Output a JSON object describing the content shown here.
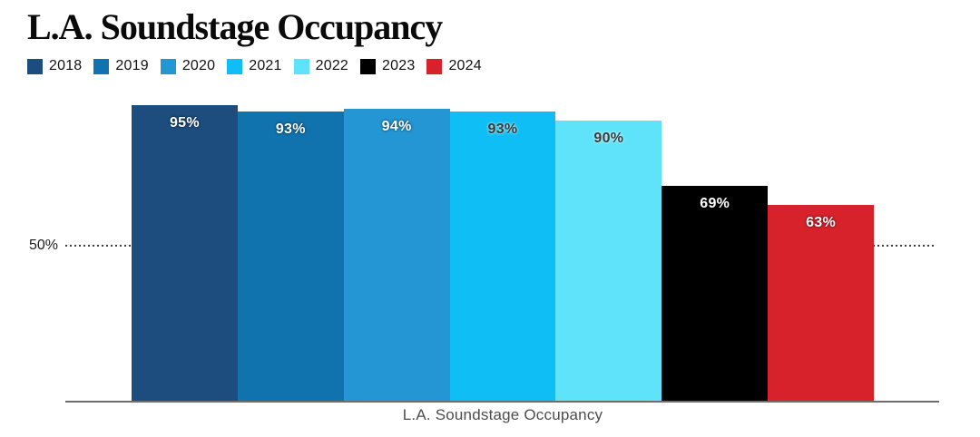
{
  "header": {
    "title": "L.A. Soundstage Occupancy"
  },
  "chart_data": {
    "type": "bar",
    "title": "L.A. Soundstage Occupancy",
    "xlabel": "L.A. Soundstage Occupancy",
    "ylabel": "",
    "categories": [
      "2018",
      "2019",
      "2020",
      "2021",
      "2022",
      "2023",
      "2024"
    ],
    "values": [
      95,
      93,
      94,
      93,
      90,
      69,
      63
    ],
    "value_labels": [
      "95%",
      "93%",
      "94%",
      "93%",
      "90%",
      "69%",
      "63%"
    ],
    "bar_colors": [
      "#1d4d7f",
      "#1173ae",
      "#2496d3",
      "#0fbef5",
      "#5fe3fb",
      "#000000",
      "#d7222b"
    ],
    "value_label_colors": [
      "#ffffff",
      "#ffffff",
      "#ffffff",
      "#3a3a3a",
      "#3a3a3a",
      "#ffffff",
      "#ffffff"
    ],
    "ylim": [
      0,
      100
    ],
    "yticks": [
      {
        "value": 50,
        "label": "50%"
      }
    ],
    "grid": "single dotted horizontal line at 50%",
    "legend_position": "top-left",
    "axis_line_color": "#6e6e6e",
    "gridline_color": "#3f3f3f"
  }
}
